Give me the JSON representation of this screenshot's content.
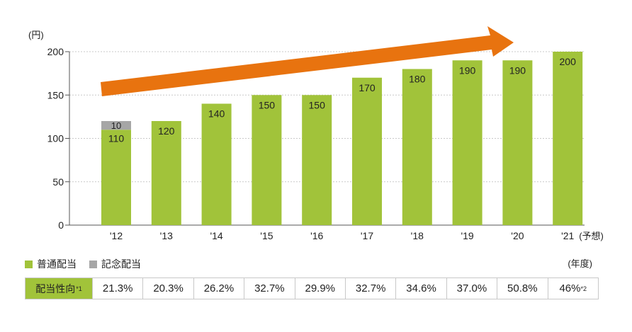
{
  "chart_data": {
    "type": "bar",
    "stacked": true,
    "y_unit_label": "(円)",
    "x_unit_label": "(年度)",
    "categories": [
      "'12",
      "'13",
      "'14",
      "'15",
      "'16",
      "'17",
      "'18",
      "'19",
      "'20",
      "'21"
    ],
    "forecast_suffix": "(予想)",
    "series": [
      {
        "name": "普通配当",
        "color": "#a1c33a",
        "values": [
          110,
          120,
          140,
          150,
          150,
          170,
          180,
          190,
          190,
          200
        ]
      },
      {
        "name": "記念配当",
        "color": "#a6a6a6",
        "values": [
          10,
          0,
          0,
          0,
          0,
          0,
          0,
          0,
          0,
          0
        ]
      }
    ],
    "ylim": [
      0,
      200
    ],
    "yticks": [
      0,
      50,
      100,
      150,
      200
    ],
    "grid": true,
    "arrow_color": "#e8730f"
  },
  "payout_ratio": {
    "header": "配当性向",
    "header_note": "*1",
    "values": [
      "21.3%",
      "20.3%",
      "26.2%",
      "32.7%",
      "29.9%",
      "32.7%",
      "34.6%",
      "37.0%",
      "50.8%",
      "46%"
    ],
    "last_note": "*2"
  }
}
